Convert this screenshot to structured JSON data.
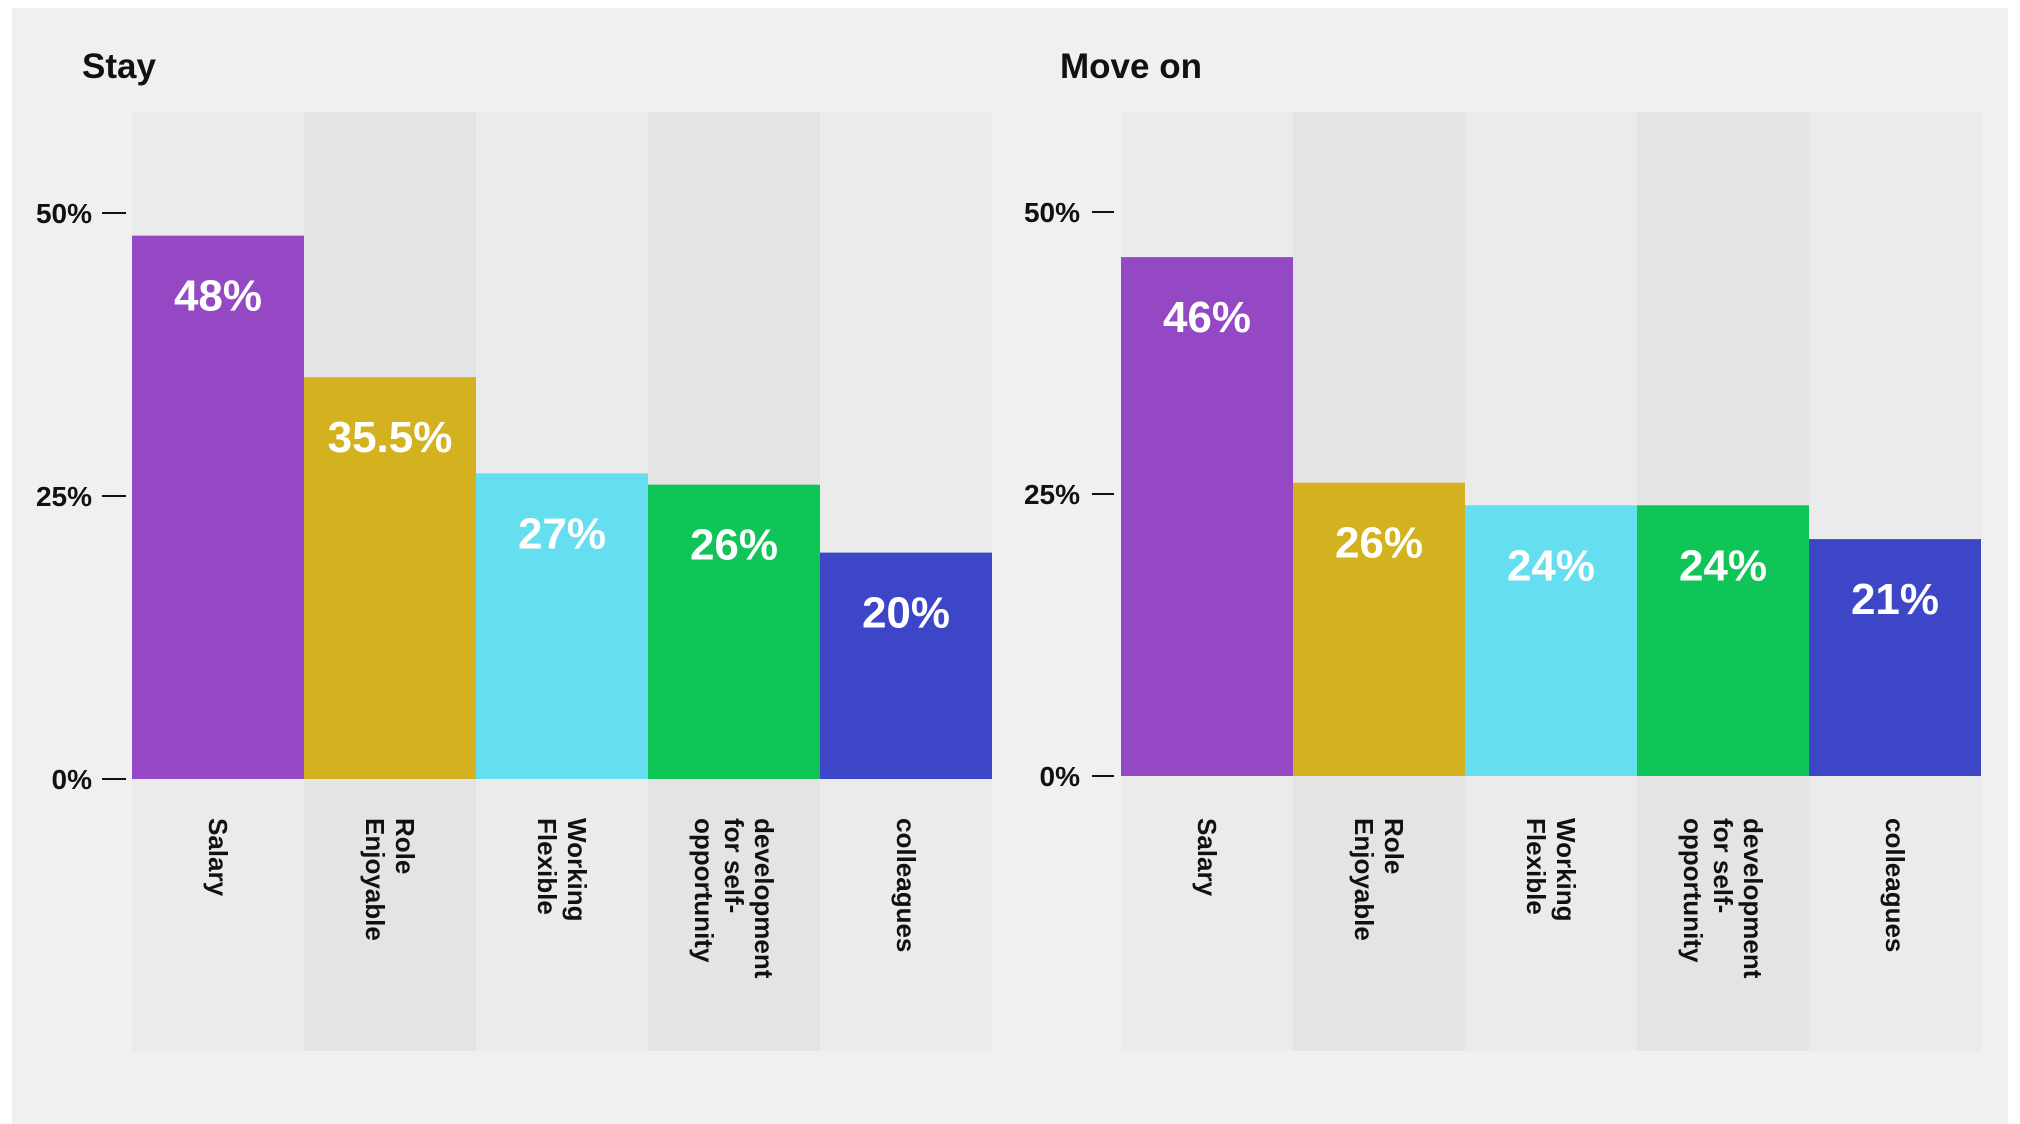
{
  "chart_data": [
    {
      "type": "bar",
      "title": "Stay",
      "categories": [
        "Salary",
        "Enjoyable Role",
        "Flexible Working",
        "opportunity for self-development",
        "colleagues"
      ],
      "category_lines": [
        [
          "Salary"
        ],
        [
          "Enjoyable",
          "Role"
        ],
        [
          "Flexible",
          "Working"
        ],
        [
          "opportunity",
          "for self-",
          "development"
        ],
        [
          "colleagues"
        ]
      ],
      "values": [
        48,
        35.5,
        27,
        26,
        20
      ],
      "value_labels": [
        "48%",
        "35.5%",
        "27%",
        "26%",
        "20%"
      ],
      "y_ticks": [
        {
          "value": 0,
          "label": "0%"
        },
        {
          "value": 25,
          "label": "25%"
        },
        {
          "value": 50,
          "label": "50%"
        }
      ],
      "ylim": [
        0,
        50
      ],
      "grid": false,
      "legend": "none"
    },
    {
      "type": "bar",
      "title": "Move on",
      "categories": [
        "Salary",
        "Enjoyable Role",
        "Flexible Working",
        "opportunity for self-development",
        "colleagues"
      ],
      "category_lines": [
        [
          "Salary"
        ],
        [
          "Enjoyable",
          "Role"
        ],
        [
          "Flexible",
          "Working"
        ],
        [
          "opportunity",
          "for self-",
          "development"
        ],
        [
          "colleagues"
        ]
      ],
      "values": [
        46,
        26,
        24,
        24,
        21
      ],
      "value_labels": [
        "46%",
        "26%",
        "24%",
        "24%",
        "21%"
      ],
      "y_ticks": [
        {
          "value": 0,
          "label": "0%"
        },
        {
          "value": 25,
          "label": "25%"
        },
        {
          "value": 50,
          "label": "50%"
        }
      ],
      "ylim": [
        0,
        50
      ],
      "grid": false,
      "legend": "none"
    }
  ],
  "colors": {
    "bars": [
      "#9448c4",
      "#d4b11e",
      "#65dfef",
      "#10c558",
      "#3e46c8"
    ],
    "bands": [
      "#ebebeb",
      "#e4e4e4"
    ],
    "label_text": "#ffffff",
    "axis_text": "#111111"
  }
}
